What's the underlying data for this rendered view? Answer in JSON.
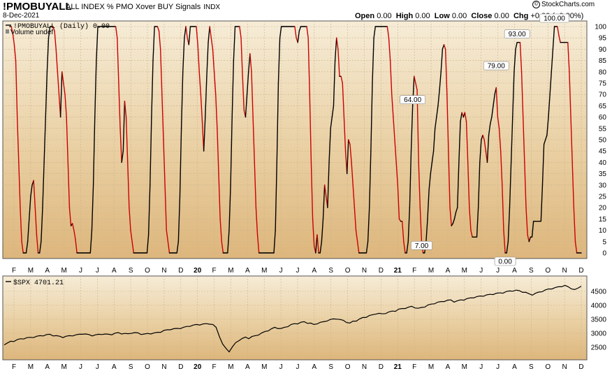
{
  "header": {
    "symbol": "!PMOBUYALL",
    "description": "ALL INDEX % PMO Xover BUY Signals",
    "exchange": "INDX",
    "date": "8-Dec-2021",
    "ohlc": {
      "open_label": "Open",
      "open": "0.00",
      "high_label": "High",
      "high": "0.00",
      "low_label": "Low",
      "low": "0.00",
      "close_label": "Close",
      "close": "0.00",
      "chg_label": "Chg",
      "chg": "+0.00 (+0.00%)"
    },
    "logo_mark": "©",
    "logo_text": "StockCharts.com"
  },
  "chart_data": [
    {
      "type": "line",
      "legend": "!PMOBUYALL (Daily) 0.00",
      "legend_sub": "Volume undef",
      "ylim": [
        0,
        100
      ],
      "y_ticks": [
        0,
        5,
        10,
        15,
        20,
        25,
        30,
        35,
        40,
        45,
        50,
        55,
        60,
        65,
        70,
        75,
        80,
        85,
        90,
        95,
        100
      ],
      "x_ticks": [
        "F",
        "M",
        "A",
        "M",
        "J",
        "J",
        "A",
        "S",
        "O",
        "N",
        "D",
        "20",
        "F",
        "M",
        "A",
        "M",
        "J",
        "J",
        "A",
        "S",
        "O",
        "N",
        "D",
        "21",
        "F",
        "M",
        "A",
        "M",
        "J",
        "J",
        "A",
        "S",
        "O",
        "N",
        "D"
      ],
      "colors": {
        "rising": "#000000",
        "falling": "#cc0000"
      },
      "series": [
        {
          "values": [
            100,
            100,
            97,
            92,
            85,
            60,
            40,
            20,
            5,
            0,
            0,
            0,
            5,
            15,
            25,
            30,
            32,
            20,
            8,
            0,
            0,
            5,
            20,
            40,
            60,
            80,
            95,
            100,
            100,
            100,
            98,
            90,
            80,
            70,
            60,
            80,
            75,
            70,
            60,
            40,
            20,
            12,
            13,
            10,
            6,
            0,
            0,
            0,
            0,
            0,
            0,
            0,
            0,
            0,
            0,
            10,
            30,
            60,
            85,
            100,
            100,
            100,
            100,
            100,
            100,
            100,
            100,
            100,
            100,
            100,
            100,
            100,
            95,
            75,
            55,
            40,
            45,
            67,
            60,
            40,
            20,
            10,
            5,
            0,
            0,
            0,
            0,
            0,
            0,
            0,
            0,
            0,
            0,
            8,
            30,
            60,
            85,
            100,
            100,
            100,
            98,
            90,
            70,
            50,
            30,
            10,
            5,
            0,
            0,
            0,
            0,
            0,
            0,
            5,
            25,
            55,
            80,
            95,
            100,
            95,
            92,
            100,
            100,
            100,
            100,
            100,
            92,
            80,
            70,
            58,
            45,
            60,
            78,
            93,
            100,
            95,
            90,
            80,
            70,
            55,
            35,
            15,
            5,
            0,
            0,
            0,
            0,
            10,
            30,
            60,
            85,
            100,
            100,
            100,
            100,
            95,
            78,
            63,
            60,
            70,
            80,
            88,
            80,
            60,
            40,
            20,
            8,
            0,
            0,
            0,
            0,
            0,
            0,
            0,
            0,
            0,
            0,
            0,
            10,
            40,
            75,
            95,
            100,
            100,
            100,
            100,
            100,
            100,
            100,
            100,
            100,
            100,
            95,
            93,
            98,
            100,
            100,
            100,
            100,
            100,
            95,
            70,
            40,
            15,
            3,
            0,
            8,
            0,
            0,
            5,
            15,
            30,
            25,
            20,
            40,
            55,
            60,
            65,
            85,
            95,
            90,
            78,
            78,
            75,
            60,
            45,
            35,
            50,
            48,
            40,
            30,
            20,
            10,
            5,
            0,
            0,
            0,
            0,
            0,
            0,
            5,
            20,
            45,
            75,
            95,
            100,
            100,
            100,
            100,
            100,
            100,
            100,
            100,
            100,
            95,
            85,
            70,
            60,
            50,
            40,
            30,
            15,
            14,
            14,
            5,
            0,
            0,
            5,
            20,
            45,
            65,
            78,
            75,
            72,
            40,
            20,
            5,
            0,
            0,
            5,
            15,
            28,
            35,
            40,
            45,
            55,
            60,
            65,
            72,
            80,
            90,
            92,
            90,
            70,
            45,
            20,
            12,
            13,
            15,
            18,
            20,
            40,
            58,
            62,
            60,
            62,
            58,
            40,
            20,
            10,
            7,
            7,
            7,
            7,
            20,
            40,
            50,
            52,
            50,
            45,
            40,
            52,
            57,
            60,
            65,
            70,
            73,
            60,
            55,
            45,
            30,
            10,
            0,
            0,
            5,
            20,
            40,
            60,
            80,
            90,
            93,
            93,
            93,
            80,
            60,
            40,
            20,
            8,
            5,
            7,
            7,
            14,
            14,
            14,
            14,
            14,
            14,
            30,
            48,
            50,
            52,
            60,
            70,
            80,
            90,
            100,
            100,
            100,
            96,
            93,
            93,
            93,
            93,
            93,
            93,
            80,
            60,
            40,
            20,
            5,
            0,
            0,
            0,
            0
          ]
        }
      ],
      "annotations": [
        {
          "label": "64.00",
          "value": 64
        },
        {
          "label": "7.00",
          "value": 7
        },
        {
          "label": "79.00",
          "value": 79
        },
        {
          "label": "93.00",
          "value": 93
        },
        {
          "label": "0.00",
          "value": 0
        },
        {
          "label": "100.00",
          "value": 100
        }
      ]
    },
    {
      "type": "line",
      "legend": "$SPX 4701.21",
      "ylim": [
        2250,
        4850
      ],
      "y_ticks": [
        2500,
        3000,
        3500,
        4000,
        4500
      ],
      "x_ticks": [
        "F",
        "M",
        "A",
        "M",
        "J",
        "J",
        "A",
        "S",
        "O",
        "N",
        "D",
        "20",
        "F",
        "M",
        "A",
        "M",
        "J",
        "J",
        "A",
        "S",
        "O",
        "N",
        "D",
        "21",
        "F",
        "M",
        "A",
        "M",
        "J",
        "J",
        "A",
        "S",
        "O",
        "N",
        "D"
      ],
      "colors": {
        "line": "#000000"
      },
      "series": [
        {
          "values": [
            2600,
            2640,
            2700,
            2720,
            2760,
            2790,
            2810,
            2830,
            2840,
            2860,
            2880,
            2900,
            2920,
            2940,
            2950,
            2920,
            2900,
            2880,
            2860,
            2880,
            2900,
            2920,
            2930,
            2950,
            2980,
            2960,
            2940,
            2920,
            2930,
            2950,
            2970,
            2960,
            2950,
            2960,
            2990,
            3010,
            2990,
            2980,
            2970,
            3010,
            3010,
            3000,
            2970,
            2960,
            2980,
            2990,
            3000,
            3020,
            3050,
            3090,
            3110,
            3140,
            3150,
            3160,
            3180,
            3200,
            3230,
            3260,
            3280,
            3300,
            3310,
            3320,
            3330,
            3340,
            3300,
            3200,
            2900,
            2600,
            2450,
            2350,
            2500,
            2650,
            2750,
            2800,
            2850,
            2820,
            2870,
            2900,
            2950,
            3000,
            3050,
            3100,
            3150,
            3200,
            3180,
            3160,
            3200,
            3250,
            3300,
            3330,
            3350,
            3380,
            3400,
            3370,
            3350,
            3300,
            3350,
            3380,
            3400,
            3450,
            3480,
            3500,
            3520,
            3480,
            3450,
            3400,
            3350,
            3420,
            3450,
            3500,
            3550,
            3580,
            3620,
            3650,
            3700,
            3700,
            3680,
            3720,
            3750,
            3780,
            3800,
            3850,
            3870,
            3900,
            3920,
            3950,
            3920,
            3880,
            3910,
            3950,
            4000,
            4030,
            4070,
            4100,
            4120,
            4150,
            4170,
            4180,
            4130,
            4150,
            4180,
            4200,
            4230,
            4250,
            4280,
            4300,
            4320,
            4340,
            4360,
            4380,
            4400,
            4420,
            4430,
            4450,
            4480,
            4500,
            4520,
            4530,
            4510,
            4480,
            4450,
            4400,
            4380,
            4420,
            4460,
            4500,
            4540,
            4570,
            4600,
            4620,
            4650,
            4680,
            4700,
            4650,
            4600,
            4550,
            4600,
            4701.21
          ]
        }
      ]
    }
  ]
}
